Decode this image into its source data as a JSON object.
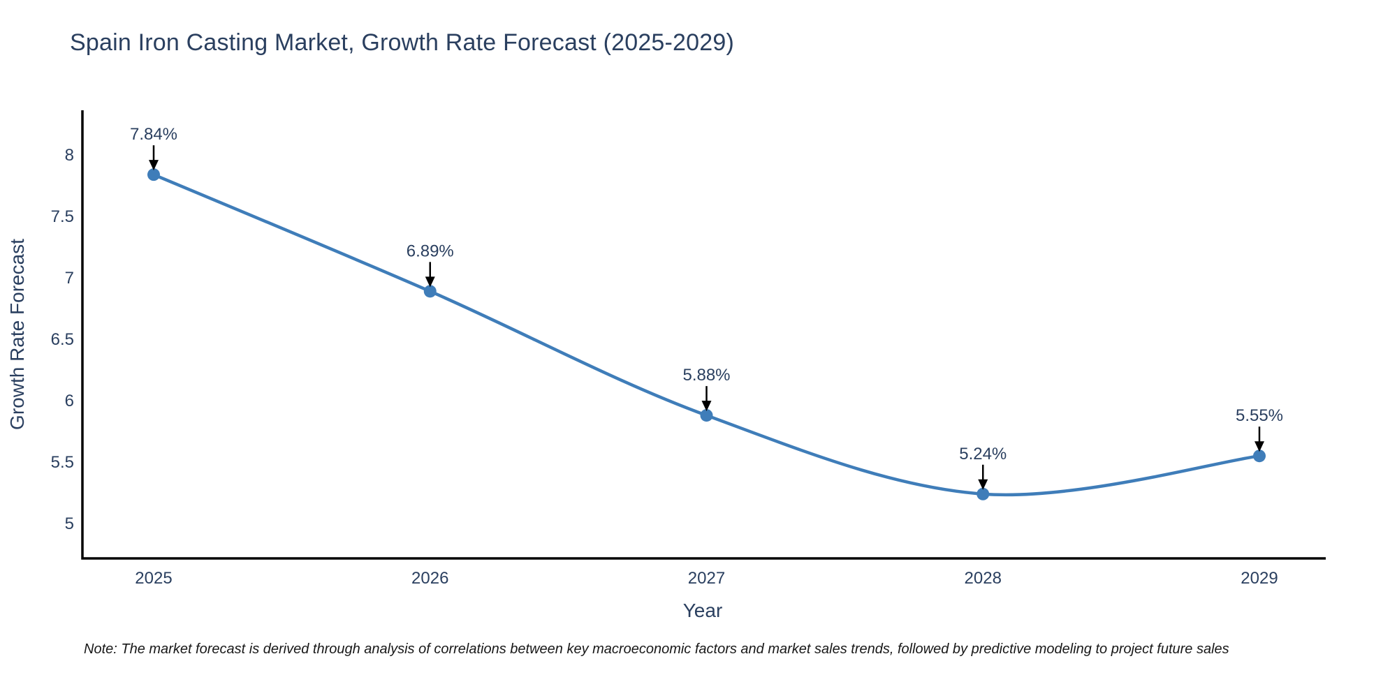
{
  "chart": {
    "note": "Note: The market forecast is derived through analysis of correlations between key macroeconomic factors and market sales trends, followed by predictive modeling to project future sales",
    "colors": {
      "line": "#3f7db9",
      "marker": "#3f7db9",
      "axis": "#000000",
      "arrow": "#000000",
      "text": "#2a3f5f",
      "note_text": "#181818",
      "background": "#ffffff"
    }
  },
  "chart_data": {
    "type": "line",
    "title": "Spain Iron Casting Market, Growth Rate Forecast (2025-2029)",
    "x": [
      "2025",
      "2026",
      "2027",
      "2028",
      "2029"
    ],
    "values": [
      7.84,
      6.89,
      5.88,
      5.24,
      5.55
    ],
    "point_labels": [
      "7.84%",
      "6.89%",
      "5.88%",
      "5.24%",
      "5.55%"
    ],
    "xlabel": "Year",
    "ylabel": "Growth Rate Forecast",
    "yticks": [
      5,
      5.5,
      6,
      6.5,
      7,
      7.5,
      8
    ],
    "ylim": [
      4.72,
      8.35
    ],
    "line_shape": "spline",
    "markers": true,
    "annotations": "down-arrow-data-labels",
    "grid": false,
    "legend": false
  }
}
